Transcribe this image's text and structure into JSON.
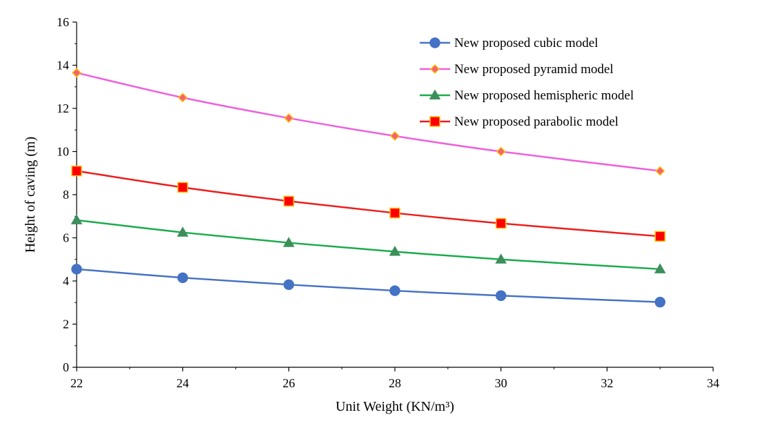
{
  "chart_data": {
    "type": "line",
    "title": "",
    "xlabel": "Unit Weight (KN/m³)",
    "ylabel": "Height of caving (m)",
    "xlim": [
      22,
      34
    ],
    "ylim": [
      0,
      16
    ],
    "x_ticks": [
      22,
      24,
      26,
      28,
      30,
      32,
      34
    ],
    "y_ticks": [
      0,
      2,
      4,
      6,
      8,
      10,
      12,
      14,
      16
    ],
    "grid": false,
    "legend_position": "top-right",
    "x": [
      22,
      24,
      26,
      28,
      30,
      33
    ],
    "series": [
      {
        "name": "New proposed cubic model",
        "values": [
          4.55,
          4.15,
          3.83,
          3.55,
          3.32,
          3.02
        ],
        "color": "#4472c4",
        "marker": "circle",
        "marker_fill": "#4472c4",
        "marker_stroke": "#4472c4"
      },
      {
        "name": "New proposed pyramid model",
        "values": [
          13.65,
          12.5,
          11.55,
          10.72,
          10.0,
          9.1
        ],
        "color": "#ee5fdc",
        "marker": "diamond",
        "marker_fill": "#f4607a",
        "marker_stroke": "#ffc000"
      },
      {
        "name": "New proposed hemispheric model",
        "values": [
          6.82,
          6.25,
          5.77,
          5.36,
          5.0,
          4.55
        ],
        "color": "#1aab4a",
        "marker": "triangle",
        "marker_fill": "#3c8f5a",
        "marker_stroke": "#3c8f5a"
      },
      {
        "name": "New proposed parabolic model",
        "values": [
          9.1,
          8.34,
          7.7,
          7.15,
          6.67,
          6.07
        ],
        "color": "#ee1c1c",
        "marker": "square",
        "marker_fill": "#ff0000",
        "marker_stroke": "#ffc000"
      }
    ]
  }
}
